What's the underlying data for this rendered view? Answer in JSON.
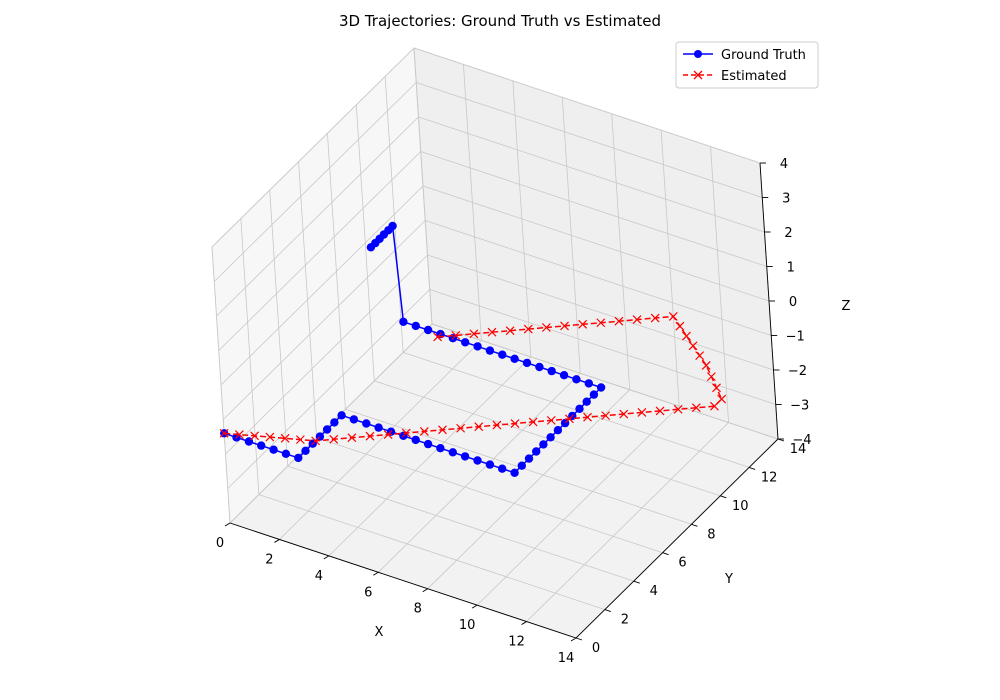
{
  "chart_data": {
    "type": "line",
    "title": "3D Trajectories: Ground Truth vs Estimated",
    "xlabel": "X",
    "ylabel": "Y",
    "zlabel": "Z",
    "xlim": [
      0,
      14
    ],
    "ylim": [
      0,
      14
    ],
    "zlim": [
      -4,
      4
    ],
    "x_ticks": [
      0,
      2,
      4,
      6,
      8,
      10,
      12,
      14
    ],
    "y_ticks": [
      0,
      2,
      4,
      6,
      8,
      10,
      12,
      14
    ],
    "z_ticks": [
      -4,
      -3,
      -2,
      -1,
      0,
      1,
      2,
      3,
      4
    ],
    "grid": true,
    "legend": "top-right",
    "series": [
      {
        "name": "Ground Truth",
        "color": "#0000ff",
        "marker": "circle",
        "linestyle": "solid",
        "x": [
          0,
          0.5,
          1,
          1.5,
          2,
          2.5,
          3,
          3,
          3,
          3,
          3,
          3,
          3,
          3.5,
          4,
          4.5,
          5,
          5.5,
          6,
          6.5,
          7,
          7.5,
          8,
          8.5,
          9,
          9.5,
          10,
          10,
          10,
          10,
          10,
          10,
          10,
          10,
          10,
          10,
          10,
          10,
          10,
          9.5,
          9,
          8.5,
          8,
          7.5,
          7,
          6.5,
          6,
          5.5,
          5,
          4.5,
          4,
          3.5,
          3,
          2.5,
          2,
          2,
          2,
          2,
          2,
          2,
          2
        ],
        "y": [
          0,
          0,
          0,
          0,
          0,
          0,
          0,
          0.5,
          1,
          1.5,
          2,
          2.5,
          3,
          3,
          3,
          3,
          3,
          3,
          3,
          3,
          3,
          3,
          3,
          3,
          3,
          3,
          3,
          3.5,
          4,
          4.5,
          5,
          5.5,
          6,
          6.5,
          7,
          7.5,
          8,
          8.5,
          9,
          9,
          9,
          9,
          9,
          9,
          9,
          9,
          9,
          9,
          9,
          9,
          9,
          9,
          9,
          9,
          9,
          8.7,
          8.4,
          8.1,
          7.8,
          7.5,
          7.2
        ],
        "z": [
          -1.4,
          -1.4,
          -1.4,
          -1.4,
          -1.4,
          -1.4,
          -1.4,
          -1.4,
          -1.4,
          -1.4,
          -1.4,
          -1.4,
          -1.4,
          -1.4,
          -1.4,
          -1.4,
          -1.4,
          -1.4,
          -1.4,
          -1.4,
          -1.4,
          -1.4,
          -1.4,
          -1.4,
          -1.4,
          -1.4,
          -1.4,
          -1.4,
          -1.4,
          -1.4,
          -1.4,
          -1.4,
          -1.4,
          -1.4,
          -1.4,
          -1.4,
          -1.4,
          -1.4,
          -1.4,
          -1.4,
          -1.4,
          -1.4,
          -1.4,
          -1.4,
          -1.4,
          -1.4,
          -1.4,
          -1.4,
          -1.4,
          -1.4,
          -1.4,
          -1.4,
          -1.4,
          -1.4,
          -1.4,
          1.5,
          1.5,
          1.5,
          1.5,
          1.5,
          1.5
        ]
      },
      {
        "name": "Estimated",
        "color": "#ff0000",
        "marker": "x",
        "linestyle": "dashed",
        "x": [
          0,
          0.5,
          1,
          1.5,
          2,
          2.5,
          3,
          3.5,
          4,
          4.5,
          5,
          5.5,
          6,
          6.5,
          7,
          7.5,
          8,
          8.5,
          9,
          9.5,
          10,
          10.5,
          11,
          11.5,
          12,
          12.5,
          13,
          13.5,
          14,
          14,
          13.5,
          13,
          12.5,
          12,
          11.5,
          11,
          10.5,
          10,
          9.5,
          9,
          8.5,
          8,
          7.5,
          7,
          6.5,
          6,
          5.5,
          5,
          4.5,
          4,
          3.5
        ],
        "y": [
          0,
          0.2,
          0.4,
          0.6,
          0.8,
          1,
          1.2,
          1.6,
          2,
          2.4,
          2.8,
          3.2,
          3.6,
          4,
          4.4,
          4.8,
          5.2,
          5.6,
          6,
          6.4,
          6.8,
          7.2,
          7.6,
          8,
          8.4,
          8.8,
          9.2,
          9.6,
          10,
          10.5,
          11,
          11.5,
          12,
          12.4,
          12.8,
          13.2,
          13.6,
          14,
          13.6,
          13.2,
          12.8,
          12.4,
          12,
          11.6,
          11.2,
          10.8,
          10.4,
          10,
          9.6,
          9.2,
          8.8
        ],
        "z": [
          -1.4,
          -1.4,
          -1.4,
          -1.4,
          -1.4,
          -1.4,
          -1.4,
          -1.4,
          -1.4,
          -1.4,
          -1.4,
          -1.4,
          -1.4,
          -1.4,
          -1.4,
          -1.4,
          -1.4,
          -1.4,
          -1.4,
          -1.4,
          -1.4,
          -1.4,
          -1.4,
          -1.4,
          -1.4,
          -1.4,
          -1.4,
          -1.4,
          -1.4,
          -1.4,
          -1.4,
          -1.4,
          -1.4,
          -1.4,
          -1.4,
          -1.4,
          -1.4,
          -1.4,
          -1.4,
          -1.4,
          -1.4,
          -1.4,
          -1.4,
          -1.4,
          -1.4,
          -1.4,
          -1.4,
          -1.4,
          -1.4,
          -1.4,
          -1.4
        ]
      }
    ]
  }
}
